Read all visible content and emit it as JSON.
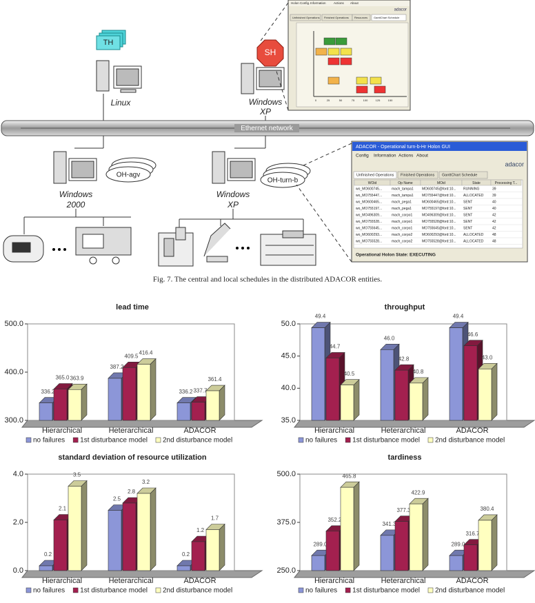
{
  "figure": {
    "screenshot_top": {
      "menu": [
        "Holon Config.",
        "Information",
        "Actions",
        "About"
      ],
      "logo": "adacor",
      "tabs": [
        "Unfinished Operations",
        "Finished Operations",
        "Resources",
        "GanttChart Schedule"
      ],
      "axis": [
        "0",
        "25",
        "50",
        "75",
        "100",
        "125",
        "150"
      ]
    },
    "screenshot_gui": {
      "title": "ADACOR - Operational turn-b-Hr Holon GUI",
      "menu": [
        "Config",
        "Information",
        "Actions",
        "About"
      ],
      "logo": "adacor",
      "tabs": [
        "Unfinished Operations",
        "Finished Operations",
        "GanttChart Schedule"
      ],
      "columns": [
        "WOid",
        "Op Name",
        "MOid",
        "State",
        "Processing T..."
      ],
      "rows": [
        [
          "wo_MO600745...",
          "mach_tampa1",
          "MO600745@ford:10...",
          "RUNNING",
          "39"
        ],
        [
          "wo_MO755447...",
          "mach_tampa1",
          "MO755447@ford:10...",
          "ALLOCATED",
          "39"
        ],
        [
          "wo_MO600465...",
          "mach_pega1",
          "MO600465@ford:10...",
          "SENT",
          "40"
        ],
        [
          "wo_MO755197...",
          "mach_pega1",
          "MO755197@ford:10...",
          "SENT",
          "40"
        ],
        [
          "wo_MO496309...",
          "mach_corpo1",
          "MO496309@ford:10...",
          "SENT",
          "42"
        ],
        [
          "wo_MO755528...",
          "mach_corpo1",
          "MO755528@ford:10...",
          "SENT",
          "42"
        ],
        [
          "wo_MO755645...",
          "mach_corpo1",
          "MO755645@ford:10...",
          "SENT",
          "42"
        ],
        [
          "wo_MO600293...",
          "mach_corpo2",
          "MO600293@ford:10...",
          "ALLOCATED",
          "48"
        ],
        [
          "wo_MO755528...",
          "mach_corpo2",
          "MO755528@ford:10...",
          "ALLOCATED",
          "48"
        ]
      ],
      "status": "Operational Holon State: EXECUTING"
    },
    "labels": {
      "th": "TH",
      "sh": "SH",
      "linux": "Linux",
      "sh_os": [
        "Windows",
        "XP"
      ],
      "network": "Ethernet network",
      "oh_agv": "OH-agv",
      "oh_turn": "OH-turn-b",
      "agv_os": [
        "Windows",
        "2000"
      ],
      "turn_os": [
        "Windows",
        "XP"
      ]
    },
    "caption": "Fig. 7. The central and local schedules in the distributed ADACOR entities."
  },
  "chart_data": [
    {
      "type": "bar3d",
      "title": "lead time",
      "categories": [
        "Hierarchical",
        "Heterarchical",
        "ADACOR"
      ],
      "ylim": [
        300,
        500
      ],
      "yticks": [
        {
          "value": 300,
          "label": "300.0"
        },
        {
          "value": 400,
          "label": "400.0"
        },
        {
          "value": 500,
          "label": "500.0"
        }
      ],
      "series": [
        {
          "name": "no failures",
          "color": "#8c96d8",
          "values": [
            336.2,
            387.2,
            336.2
          ],
          "value_labels": [
            "336.2",
            "387.2",
            "336.2"
          ]
        },
        {
          "name": "1st disturbance model",
          "color": "#a3204f",
          "values": [
            365.0,
            409.5,
            337.7
          ],
          "value_labels": [
            "365.0",
            "409.5",
            "337.7"
          ]
        },
        {
          "name": "2nd disturbance model",
          "color": "#ffffc0",
          "values": [
            363.9,
            416.4,
            361.4
          ],
          "value_labels": [
            "363.9",
            "416.4",
            "361.4"
          ]
        }
      ]
    },
    {
      "type": "bar3d",
      "title": "throughput",
      "categories": [
        "Hierarchical",
        "Heterarchical",
        "ADACOR"
      ],
      "ylim": [
        35,
        50
      ],
      "yticks": [
        {
          "value": 35,
          "label": "35.0"
        },
        {
          "value": 40,
          "label": "40.0"
        },
        {
          "value": 45,
          "label": "45.0"
        },
        {
          "value": 50,
          "label": "50.0"
        }
      ],
      "series": [
        {
          "name": "no failures",
          "color": "#8c96d8",
          "values": [
            49.4,
            46.0,
            49.4
          ],
          "value_labels": [
            "49.4",
            "46.0",
            "49.4"
          ]
        },
        {
          "name": "1st disturbance model",
          "color": "#a3204f",
          "values": [
            44.7,
            42.8,
            46.6
          ],
          "value_labels": [
            "44.7",
            "42.8",
            "46.6"
          ]
        },
        {
          "name": "2nd disturbance model",
          "color": "#ffffc0",
          "values": [
            40.5,
            40.8,
            43.0
          ],
          "value_labels": [
            "40.5",
            "40.8",
            "43.0"
          ]
        }
      ]
    },
    {
      "type": "bar3d",
      "title": "standard deviation of resource utilization",
      "categories": [
        "Hierarchical",
        "Heterarchical",
        "ADACOR"
      ],
      "ylim": [
        0,
        4
      ],
      "yticks": [
        {
          "value": 0,
          "label": "0.0"
        },
        {
          "value": 2,
          "label": "2.0"
        },
        {
          "value": 4,
          "label": "4.0"
        }
      ],
      "series": [
        {
          "name": "no failures",
          "color": "#8c96d8",
          "values": [
            0.2,
            2.5,
            0.2
          ]
        },
        {
          "name": "1st disturbance model",
          "color": "#a3204f",
          "values": [
            2.1,
            2.8,
            1.2
          ]
        },
        {
          "name": "2nd disturbance model",
          "color": "#ffffc0",
          "values": [
            3.5,
            3.2,
            1.7
          ]
        }
      ]
    },
    {
      "type": "bar3d",
      "title": "tardiness",
      "categories": [
        "Hierarchical",
        "Heterarchical",
        "ADACOR"
      ],
      "ylim": [
        250,
        500
      ],
      "yticks": [
        {
          "value": 250,
          "label": "250.0"
        },
        {
          "value": 375,
          "label": "375.0"
        },
        {
          "value": 500,
          "label": "500.0"
        }
      ],
      "series": [
        {
          "name": "no failures",
          "color": "#8c96d8",
          "values": [
            289.0,
            341.3,
            289.0
          ],
          "value_labels": [
            "289.0",
            "341.3",
            "289.0"
          ]
        },
        {
          "name": "1st disturbance model",
          "color": "#a3204f",
          "values": [
            352.2,
            377.3,
            316.7
          ],
          "value_labels": [
            "352.2",
            "377.3",
            "316.7"
          ]
        },
        {
          "name": "2nd disturbance model",
          "color": "#ffffc0",
          "values": [
            465.8,
            422.9,
            380.4
          ],
          "value_labels": [
            "465.8",
            "422.9",
            "380.4"
          ]
        }
      ]
    }
  ]
}
